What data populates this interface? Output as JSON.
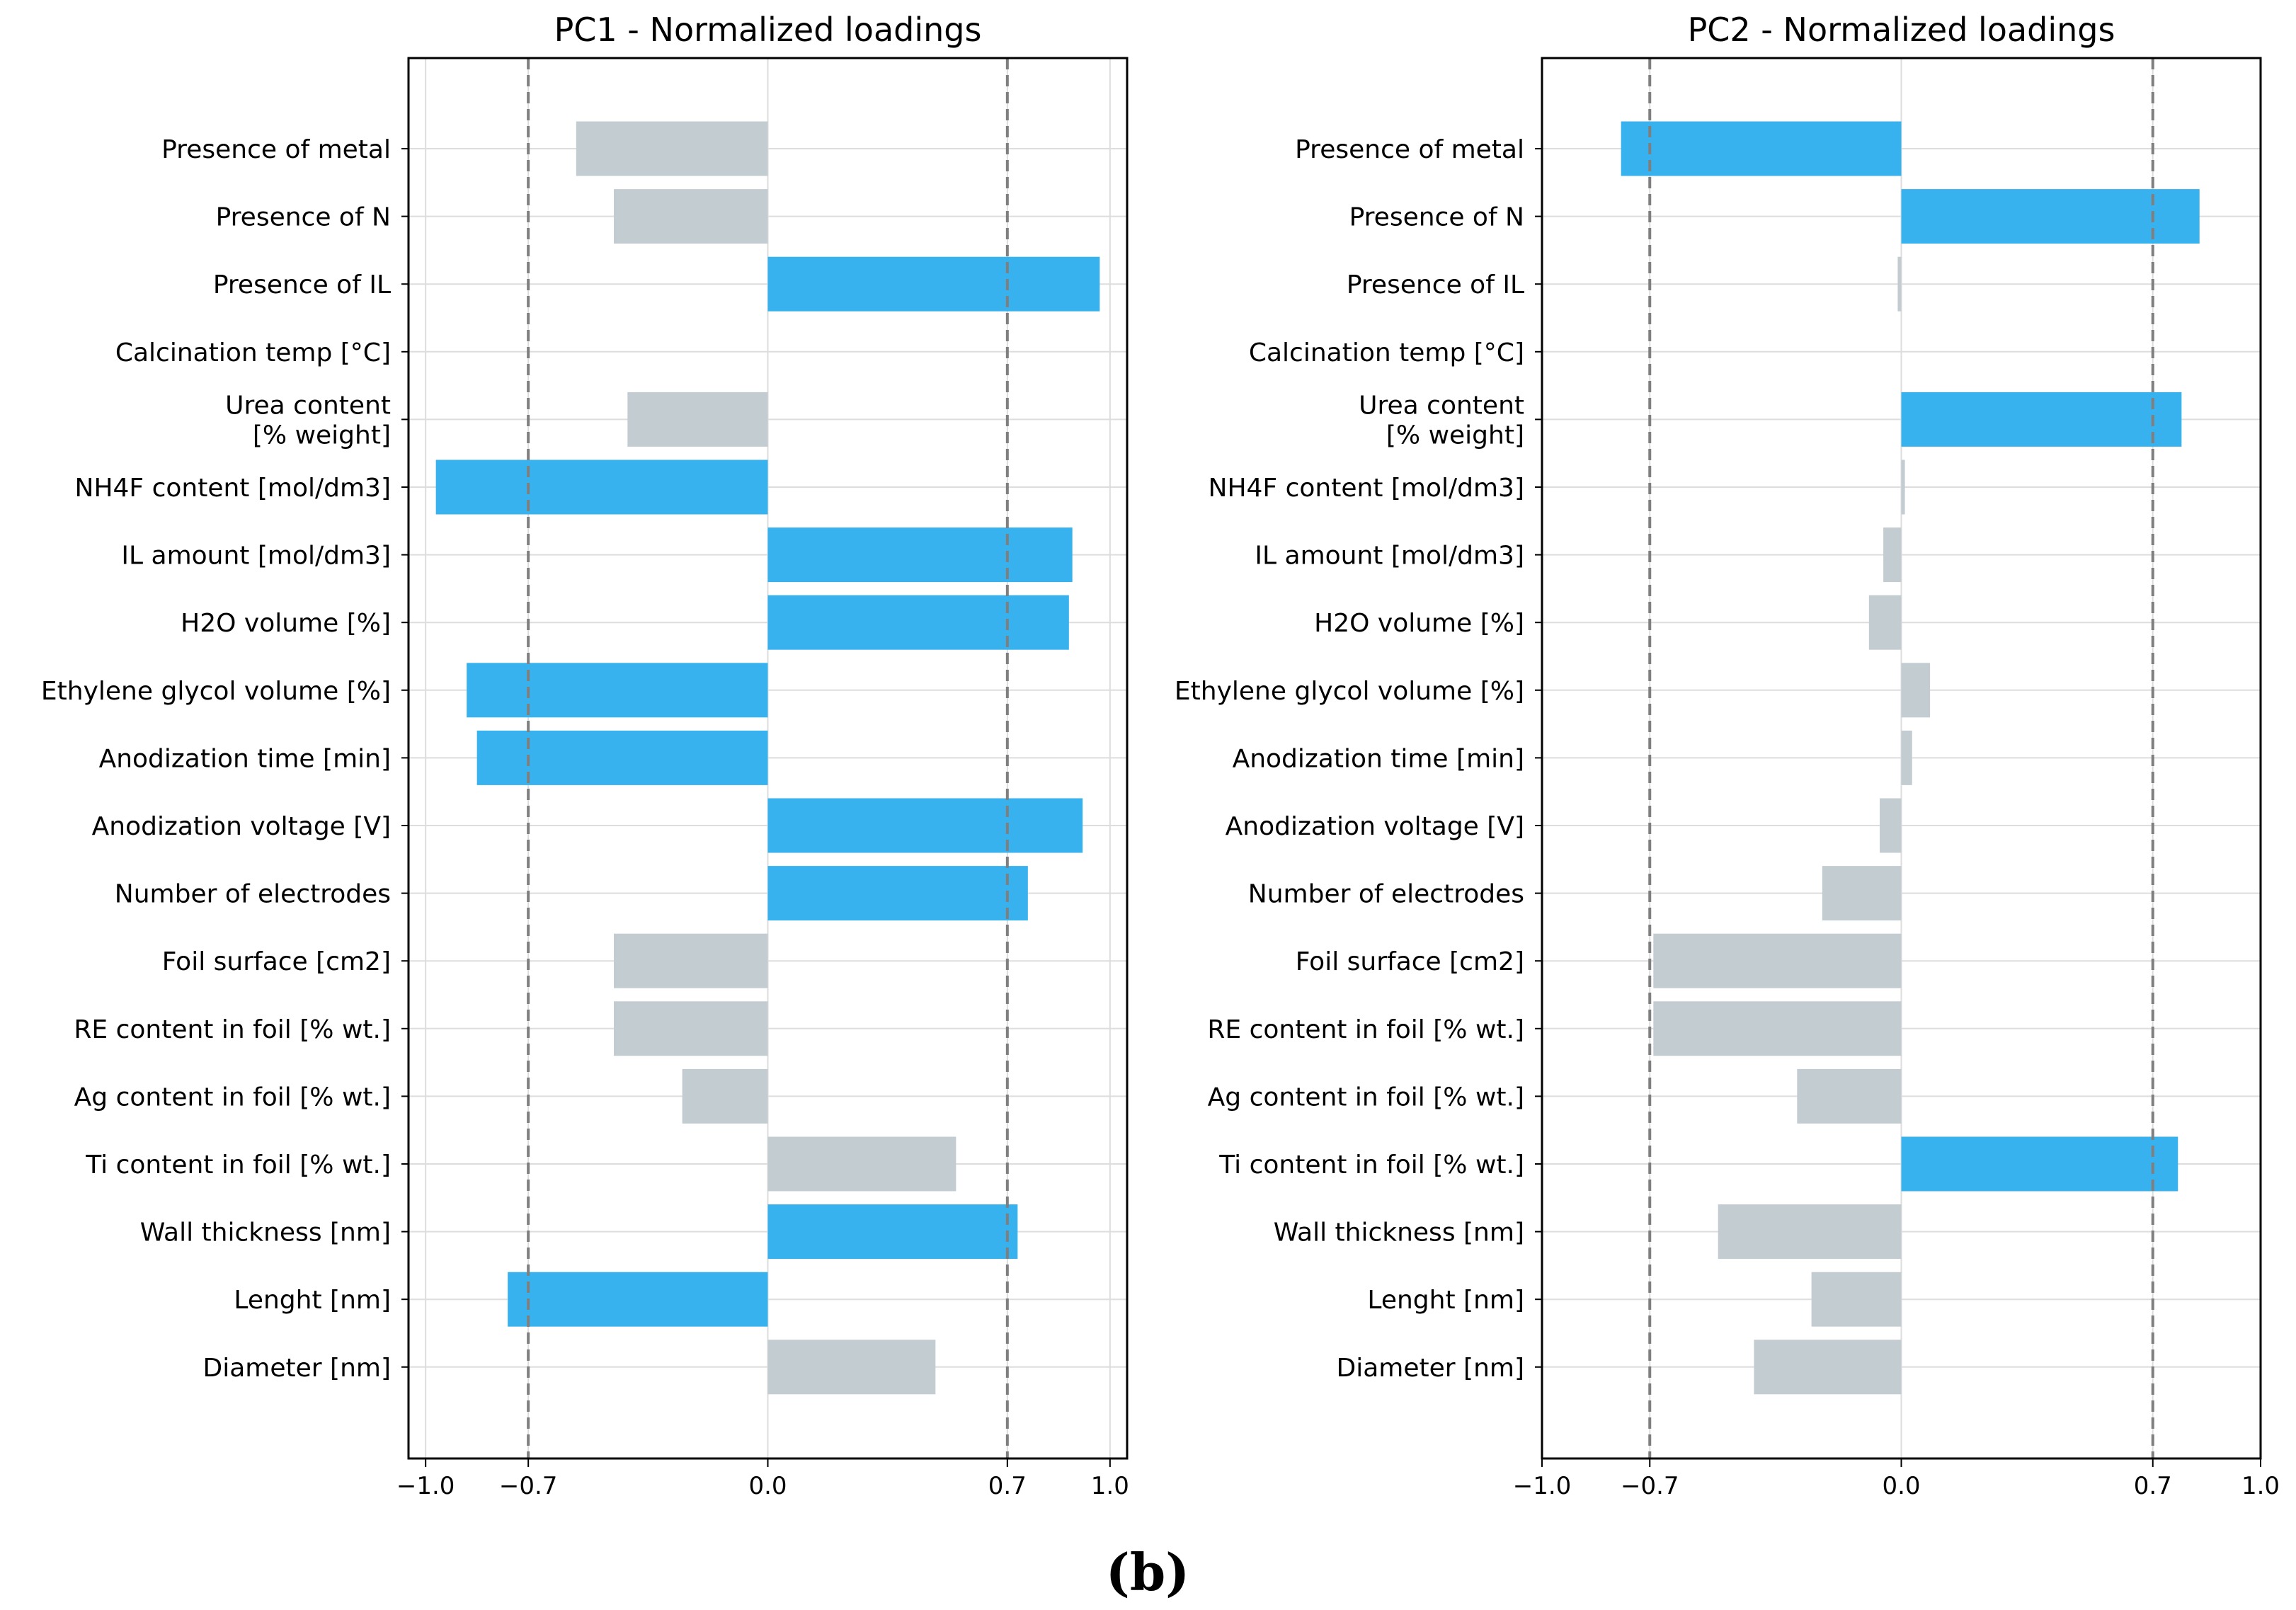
{
  "colors": {
    "highlight": "#38b2ee",
    "muted": "#c3ccd1",
    "grid": "#dddddd",
    "reference": "#7f7f7f"
  },
  "chart_data": [
    {
      "type": "bar",
      "orientation": "horizontal",
      "title": "PC1 - Normalized loadings",
      "xlim": [
        -1.05,
        1.05
      ],
      "xticks": [
        -1.0,
        -0.7,
        0.0,
        0.7,
        1.0
      ],
      "xtick_labels": [
        "−1.0",
        "−0.7",
        "0.0",
        "0.7",
        "1.0"
      ],
      "reference_lines": [
        -0.7,
        0.7
      ],
      "grid": true,
      "categories": [
        "Presence of metal",
        "Presence of N",
        "Presence of IL",
        "Calcination temp [°C]",
        "Urea content\n[% weight]",
        "NH4F content [mol/dm3]",
        "IL amount [mol/dm3]",
        "H2O volume [%]",
        "Ethylene glycol volume [%]",
        "Anodization time [min]",
        "Anodization voltage [V]",
        "Number of electrodes",
        "Foil surface [cm2]",
        "RE content in foil [% wt.]",
        "Ag content in foil [% wt.]",
        "Ti content in foil [% wt.]",
        "Wall thickness [nm]",
        "Lenght [nm]",
        "Diameter [nm]"
      ],
      "values": [
        -0.56,
        -0.45,
        0.97,
        0.0,
        -0.41,
        -0.97,
        0.89,
        0.88,
        -0.88,
        -0.85,
        0.92,
        0.76,
        -0.45,
        -0.45,
        -0.25,
        0.55,
        0.73,
        -0.76,
        0.49
      ],
      "highlighted": [
        false,
        false,
        true,
        false,
        false,
        true,
        true,
        true,
        true,
        true,
        true,
        true,
        false,
        false,
        false,
        false,
        true,
        true,
        false
      ]
    },
    {
      "type": "bar",
      "orientation": "horizontal",
      "title": "PC2 - Normalized loadings",
      "xlim": [
        -1.0,
        1.0
      ],
      "xticks": [
        -1.0,
        -0.7,
        0.0,
        0.7,
        1.0
      ],
      "xtick_labels": [
        "−1.0",
        "−0.7",
        "0.0",
        "0.7",
        "1.0"
      ],
      "reference_lines": [
        -0.7,
        0.7
      ],
      "grid": true,
      "categories": [
        "Presence of metal",
        "Presence of N",
        "Presence of IL",
        "Calcination temp [°C]",
        "Urea content\n[% weight]",
        "NH4F content [mol/dm3]",
        "IL amount [mol/dm3]",
        "H2O volume [%]",
        "Ethylene glycol volume [%]",
        "Anodization time [min]",
        "Anodization voltage [V]",
        "Number of electrodes",
        "Foil surface [cm2]",
        "RE content in foil [% wt.]",
        "Ag content in foil [% wt.]",
        "Ti content in foil [% wt.]",
        "Wall thickness [nm]",
        "Lenght [nm]",
        "Diameter [nm]"
      ],
      "values": [
        -0.78,
        0.83,
        -0.01,
        0.0,
        0.78,
        0.01,
        -0.05,
        -0.09,
        0.08,
        0.03,
        -0.06,
        -0.22,
        -0.69,
        -0.69,
        -0.29,
        0.77,
        -0.51,
        -0.25,
        -0.41
      ],
      "highlighted": [
        true,
        true,
        false,
        false,
        true,
        false,
        false,
        false,
        false,
        false,
        false,
        false,
        false,
        false,
        false,
        true,
        false,
        false,
        false
      ]
    }
  ],
  "caption": "(b)"
}
